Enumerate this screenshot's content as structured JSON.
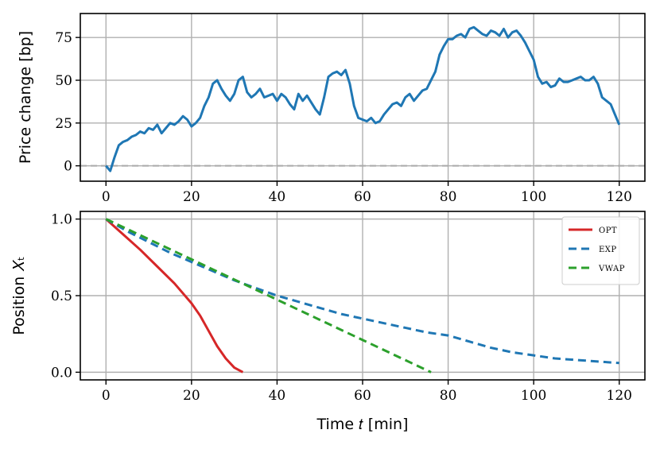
{
  "chart_data": [
    {
      "type": "line",
      "title": "",
      "xlabel": "",
      "ylabel": "Price change [bp]",
      "xlim": [
        -6,
        126
      ],
      "ylim": [
        -9,
        89
      ],
      "xticks": [
        0,
        20,
        40,
        60,
        80,
        100,
        120
      ],
      "yticks": [
        0,
        25,
        50,
        75
      ],
      "grid": true,
      "reference_line": {
        "y": 0,
        "style": "dashed",
        "color": "#aaaaaa"
      },
      "series": [
        {
          "color": "#1f77b4",
          "x": [
            0,
            1,
            2,
            3,
            4,
            5,
            6,
            7,
            8,
            9,
            10,
            11,
            12,
            13,
            14,
            15,
            16,
            17,
            18,
            19,
            20,
            21,
            22,
            23,
            24,
            25,
            26,
            27,
            28,
            29,
            30,
            31,
            32,
            33,
            34,
            35,
            36,
            37,
            38,
            39,
            40,
            41,
            42,
            43,
            44,
            45,
            46,
            47,
            48,
            49,
            50,
            51,
            52,
            53,
            54,
            55,
            56,
            57,
            58,
            59,
            60,
            61,
            62,
            63,
            64,
            65,
            66,
            67,
            68,
            69,
            70,
            71,
            72,
            73,
            74,
            75,
            76,
            77,
            78,
            79,
            80,
            81,
            82,
            83,
            84,
            85,
            86,
            87,
            88,
            89,
            90,
            91,
            92,
            93,
            94,
            95,
            96,
            97,
            98,
            99,
            100,
            101,
            102,
            103,
            104,
            105,
            106,
            107,
            108,
            109,
            110,
            111,
            112,
            113,
            114,
            115,
            116,
            117,
            118,
            119,
            120
          ],
          "values": [
            0,
            -3,
            5,
            12,
            14,
            15,
            17,
            18,
            20,
            19,
            22,
            21,
            24,
            19,
            22,
            25,
            24,
            26,
            29,
            27,
            23,
            25,
            28,
            35,
            40,
            48,
            50,
            45,
            41,
            38,
            42,
            50,
            52,
            43,
            40,
            42,
            45,
            40,
            41,
            42,
            38,
            42,
            40,
            36,
            33,
            42,
            38,
            41,
            37,
            33,
            30,
            40,
            52,
            54,
            55,
            53,
            56,
            48,
            35,
            28,
            27,
            26,
            28,
            25,
            26,
            30,
            33,
            36,
            37,
            35,
            40,
            42,
            38,
            41,
            44,
            45,
            50,
            55,
            65,
            70,
            74,
            74,
            76,
            77,
            75,
            80,
            81,
            79,
            77,
            76,
            79,
            78,
            76,
            80,
            75,
            78,
            79,
            76,
            72,
            67,
            62,
            52,
            48,
            49,
            46,
            47,
            51,
            49,
            49,
            50,
            51,
            52,
            50,
            50,
            52,
            48,
            40,
            38,
            36,
            30,
            24
          ]
        }
      ]
    },
    {
      "type": "line",
      "title": "",
      "xlabel": "Time 𝑡 [min]",
      "ylabel": "Position 𝑋ₜ",
      "xlim": [
        -6,
        126
      ],
      "ylim": [
        -0.05,
        1.05
      ],
      "xticks": [
        0,
        20,
        40,
        60,
        80,
        100,
        120
      ],
      "yticks": [
        0.0,
        0.5,
        1.0
      ],
      "ytick_labels": [
        "0.0",
        "0.5",
        "1.0"
      ],
      "grid": true,
      "legend": "top-right",
      "series": [
        {
          "name": "OPT",
          "color": "#d62728",
          "style": "solid",
          "x": [
            0,
            4,
            8,
            12,
            16,
            20,
            22,
            24,
            26,
            28,
            30,
            32
          ],
          "values": [
            1.0,
            0.9,
            0.8,
            0.69,
            0.58,
            0.45,
            0.37,
            0.27,
            0.17,
            0.09,
            0.03,
            0.0
          ]
        },
        {
          "name": "EXP",
          "color": "#1f77b4",
          "style": "dashed",
          "x": [
            0,
            5,
            10,
            15,
            20,
            25,
            30,
            35,
            40,
            45,
            50,
            55,
            60,
            65,
            70,
            75,
            80,
            85,
            90,
            95,
            100,
            105,
            110,
            115,
            120
          ],
          "values": [
            1.0,
            0.92,
            0.85,
            0.78,
            0.72,
            0.66,
            0.6,
            0.55,
            0.5,
            0.46,
            0.42,
            0.38,
            0.35,
            0.32,
            0.29,
            0.26,
            0.24,
            0.2,
            0.16,
            0.13,
            0.11,
            0.09,
            0.08,
            0.07,
            0.06
          ]
        },
        {
          "name": "VWAP",
          "color": "#2ca02c",
          "style": "dashed",
          "x": [
            0,
            76
          ],
          "values": [
            1.0,
            0.0
          ]
        }
      ]
    }
  ]
}
